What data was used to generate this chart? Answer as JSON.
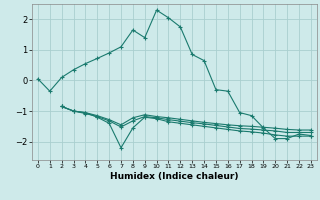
{
  "xlabel": "Humidex (Indice chaleur)",
  "background_color": "#ceeaea",
  "grid_color": "#aacfcf",
  "line_color": "#1a7a6e",
  "xlim": [
    -0.5,
    23.5
  ],
  "ylim": [
    -2.6,
    2.5
  ],
  "yticks": [
    -2,
    -1,
    0,
    1,
    2
  ],
  "xticks": [
    0,
    1,
    2,
    3,
    4,
    5,
    6,
    7,
    8,
    9,
    10,
    11,
    12,
    13,
    14,
    15,
    16,
    17,
    18,
    19,
    20,
    21,
    22,
    23
  ],
  "line1_x": [
    0,
    1,
    2,
    3,
    4,
    5,
    6,
    7,
    8,
    9,
    10,
    11,
    12,
    13,
    14,
    15,
    16,
    17,
    18,
    19,
    20,
    21,
    22,
    23
  ],
  "line1_y": [
    0.05,
    -0.35,
    0.1,
    0.35,
    0.55,
    0.72,
    0.9,
    1.1,
    1.65,
    1.4,
    2.3,
    2.05,
    1.75,
    0.85,
    0.65,
    -0.3,
    -0.35,
    -1.05,
    -1.15,
    -1.55,
    -1.9,
    -1.9,
    -1.75,
    -1.8
  ],
  "line2_x": [
    2,
    3,
    4,
    5,
    6,
    7,
    8,
    9,
    10,
    11,
    12,
    13,
    14,
    15,
    16,
    17,
    18,
    19,
    20,
    21,
    22,
    23
  ],
  "line2_y": [
    -0.85,
    -1.0,
    -1.05,
    -1.2,
    -1.4,
    -2.2,
    -1.55,
    -1.2,
    -1.25,
    -1.35,
    -1.4,
    -1.45,
    -1.5,
    -1.55,
    -1.6,
    -1.65,
    -1.68,
    -1.72,
    -1.78,
    -1.82,
    -1.82,
    -1.82
  ],
  "line3_x": [
    2,
    3,
    4,
    5,
    6,
    7,
    8,
    9,
    10,
    11,
    12,
    13,
    14,
    15,
    16,
    17,
    18,
    19,
    20,
    21,
    22,
    23
  ],
  "line3_y": [
    -0.85,
    -1.0,
    -1.08,
    -1.18,
    -1.32,
    -1.52,
    -1.32,
    -1.18,
    -1.22,
    -1.28,
    -1.33,
    -1.38,
    -1.42,
    -1.47,
    -1.52,
    -1.57,
    -1.59,
    -1.62,
    -1.65,
    -1.7,
    -1.7,
    -1.7
  ],
  "line4_x": [
    2,
    3,
    4,
    5,
    6,
    7,
    8,
    9,
    10,
    11,
    12,
    13,
    14,
    15,
    16,
    17,
    18,
    19,
    20,
    21,
    22,
    23
  ],
  "line4_y": [
    -0.85,
    -1.0,
    -1.05,
    -1.15,
    -1.28,
    -1.45,
    -1.22,
    -1.12,
    -1.18,
    -1.22,
    -1.27,
    -1.32,
    -1.37,
    -1.41,
    -1.45,
    -1.48,
    -1.5,
    -1.53,
    -1.56,
    -1.6,
    -1.62,
    -1.62
  ]
}
